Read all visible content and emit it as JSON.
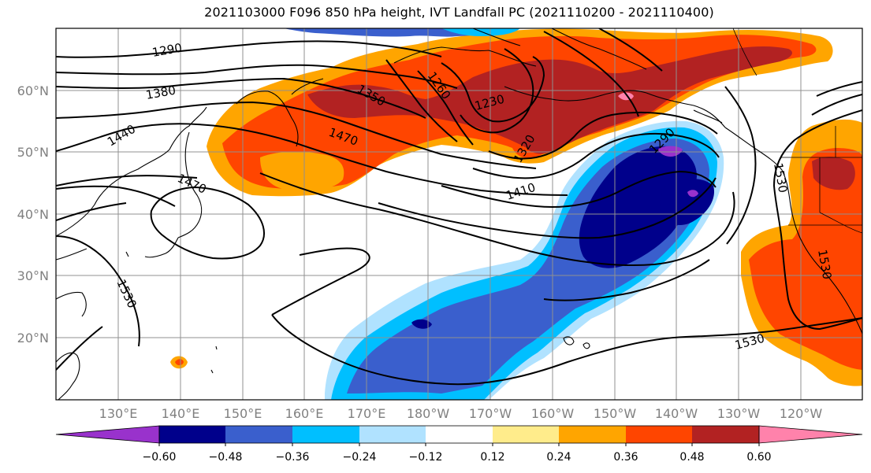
{
  "title": "2021103000 F096 850 hPa height, IVT Landfall PC (2021110200 - 2021110400)",
  "lon_labels": [
    "130°E",
    "140°E",
    "150°E",
    "160°E",
    "170°E",
    "180°W",
    "170°W",
    "160°W",
    "150°W",
    "140°W",
    "130°W",
    "120°W"
  ],
  "lat_labels": [
    "60°N",
    "50°N",
    "40°N",
    "30°N",
    "20°N"
  ],
  "contour_labels": [
    "1290",
    "1380",
    "1440",
    "1350",
    "1260",
    "1230",
    "1470",
    "1470",
    "1320",
    "1290",
    "1410",
    "1530",
    "1530",
    "1530",
    "1530"
  ],
  "colorbar": {
    "ticks": [
      "−0.60",
      "−0.48",
      "−0.36",
      "−0.24",
      "−0.12",
      "0.12",
      "0.24",
      "0.36",
      "0.48",
      "0.60"
    ],
    "colors": [
      "#9932cc",
      "#00008b",
      "#3a5fcd",
      "#00bfff",
      "#b0e2ff",
      "#ffffff",
      "#ffec8b",
      "#ffa500",
      "#ff4500",
      "#b22222",
      "#ff82ab"
    ]
  },
  "colors": {
    "grid": "#909090",
    "contour": "#000000",
    "coast": "#000000"
  }
}
